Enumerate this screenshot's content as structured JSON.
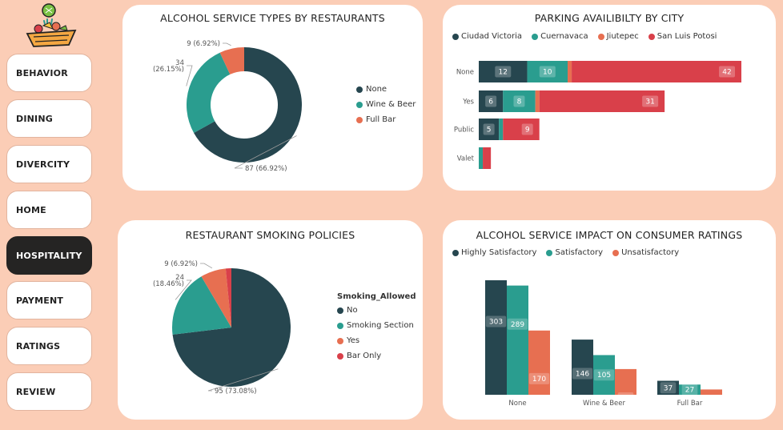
{
  "nav": {
    "items": [
      {
        "label": "BEHAVIOR",
        "active": false
      },
      {
        "label": "DINING",
        "active": false
      },
      {
        "label": "DIVERCITY",
        "active": false
      },
      {
        "label": "HOME",
        "active": false
      },
      {
        "label": "HOSPITALITY",
        "active": true
      },
      {
        "label": "PAYMENT",
        "active": false
      },
      {
        "label": "RATINGS",
        "active": false
      },
      {
        "label": "REVIEW",
        "active": false
      }
    ]
  },
  "colors": {
    "page_bg": "#fbcdb6",
    "dark_teal": "#26464f",
    "teal": "#2a9d8f",
    "orange": "#e76f51",
    "red": "#d9404a",
    "active_nav": "#252423"
  },
  "chart_data": [
    {
      "id": "alcohol",
      "type": "pie",
      "variant": "donut",
      "title": "ALCOHOL SERVICE TYPES BY RESTAURANTS",
      "categories": [
        "None",
        "Wine & Beer",
        "Full Bar"
      ],
      "values": [
        87,
        34,
        9
      ],
      "value_labels": [
        "87 (66.92%)",
        "34 (26.15%)",
        "9 (6.92%)"
      ],
      "colors": [
        "#26464f",
        "#2a9d8f",
        "#e76f51"
      ],
      "legend_position": "right"
    },
    {
      "id": "parking",
      "type": "bar",
      "orientation": "horizontal",
      "stacked": true,
      "title": "PARKING AVAILIBILTY BY CITY",
      "categories": [
        "None",
        "Yes",
        "Public",
        "Valet"
      ],
      "series": [
        {
          "name": "Ciudad Victoria",
          "color": "#26464f",
          "values": [
            12,
            6,
            5,
            0
          ]
        },
        {
          "name": "Cuernavaca",
          "color": "#2a9d8f",
          "values": [
            10,
            8,
            1,
            1
          ]
        },
        {
          "name": "Jiutepec",
          "color": "#e76f51",
          "values": [
            1,
            1,
            0,
            0
          ]
        },
        {
          "name": "San Luis Potosi",
          "color": "#d9404a",
          "values": [
            42,
            31,
            9,
            2
          ]
        }
      ],
      "shown_labels": [
        {
          "series": 0,
          "cat": 0,
          "text": "12"
        },
        {
          "series": 1,
          "cat": 0,
          "text": "10"
        },
        {
          "series": 3,
          "cat": 0,
          "text": "42"
        },
        {
          "series": 0,
          "cat": 1,
          "text": "6"
        },
        {
          "series": 1,
          "cat": 1,
          "text": "8"
        },
        {
          "series": 3,
          "cat": 1,
          "text": "31"
        },
        {
          "series": 0,
          "cat": 2,
          "text": "5"
        },
        {
          "series": 3,
          "cat": 2,
          "text": "9"
        }
      ],
      "legend_position": "top-left"
    },
    {
      "id": "smoking",
      "type": "pie",
      "title": "RESTAURANT SMOKING POLICIES",
      "legend_title": "Smoking_Allowed",
      "categories": [
        "No",
        "Smoking Section",
        "Yes",
        "Bar Only"
      ],
      "values": [
        95,
        24,
        9,
        2
      ],
      "value_labels": [
        "95 (73.08%)",
        "24 (18.46%)",
        "9 (6.92%)",
        ""
      ],
      "colors": [
        "#26464f",
        "#2a9d8f",
        "#e76f51",
        "#d9404a"
      ],
      "legend_position": "right"
    },
    {
      "id": "impact",
      "type": "bar",
      "orientation": "vertical",
      "stacked": false,
      "title": "ALCOHOL SERVICE IMPACT ON CONSUMER RATINGS",
      "categories": [
        "None",
        "Wine & Beer",
        "Full Bar"
      ],
      "series": [
        {
          "name": "Highly Satisfactory",
          "color": "#26464f",
          "values": [
            303,
            146,
            37
          ]
        },
        {
          "name": "Satisfactory",
          "color": "#2a9d8f",
          "values": [
            289,
            105,
            27
          ]
        },
        {
          "name": "Unsatisfactory",
          "color": "#e76f51",
          "values": [
            170,
            68,
            14
          ]
        }
      ],
      "hidden_labels": [
        [
          2,
          2
        ]
      ],
      "legend_position": "top-left"
    }
  ]
}
